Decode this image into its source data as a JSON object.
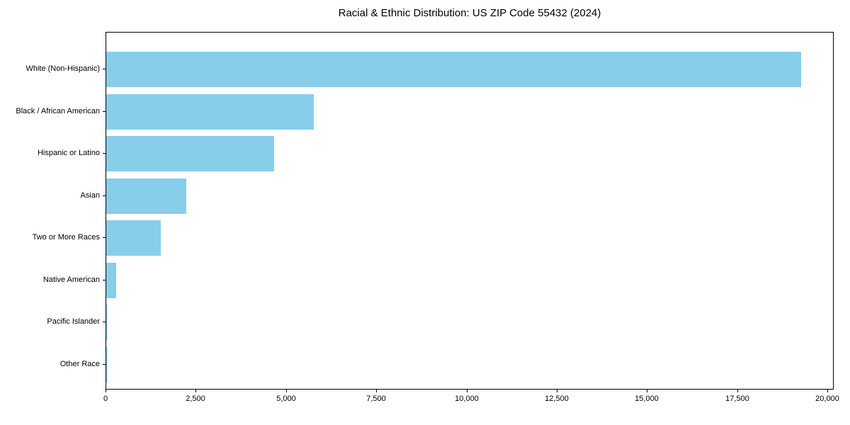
{
  "chart_data": {
    "type": "bar",
    "orientation": "horizontal",
    "title": "Racial & Ethnic Distribution: US ZIP Code 55432 (2024)",
    "categories": [
      "White (Non-Hispanic)",
      "Black / African American",
      "Hispanic or Latino",
      "Asian",
      "Two or More Races",
      "Native American",
      "Pacific Islander",
      "Other Race"
    ],
    "values": [
      19250,
      5750,
      4650,
      2220,
      1510,
      275,
      20,
      10
    ],
    "xlim": [
      0,
      20000
    ],
    "x_tick_values": [
      0,
      2500,
      5000,
      7500,
      10000,
      12500,
      15000,
      17500,
      20000
    ],
    "x_tick_labels": [
      "0",
      "2,500",
      "5,000",
      "7,500",
      "10,000",
      "12,500",
      "15,000",
      "17,500",
      "20,000"
    ],
    "xlabel": "",
    "ylabel": "",
    "bar_color": "#87CEEB",
    "grid": false,
    "legend_position": "none"
  }
}
